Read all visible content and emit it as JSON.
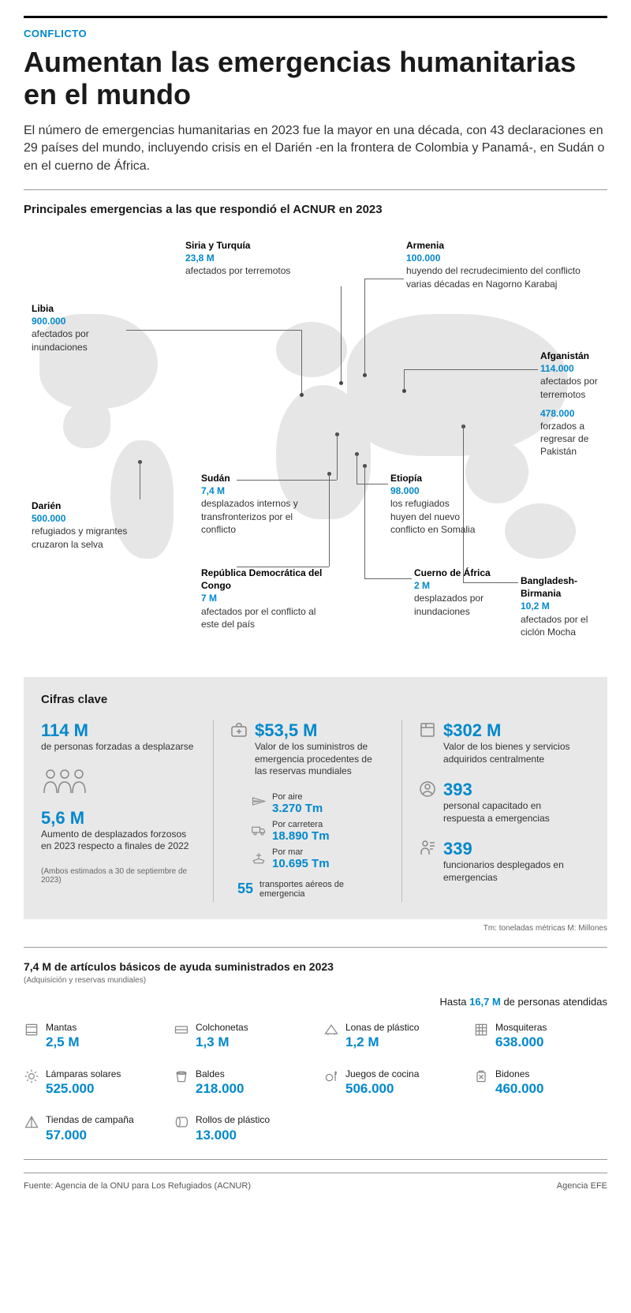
{
  "colors": {
    "accent": "#0088cc",
    "text": "#1a1a1a",
    "map": "#e6e6e6",
    "keybox_bg": "#e8e8e8",
    "rule": "#999",
    "icon": "#888888"
  },
  "kicker": "CONFLICTO",
  "headline": "Aumentan las emergencias humanitarias en el mundo",
  "dek": "El número de emergencias humanitarias en 2023 fue la mayor en una década, con 43 declaraciones en 29 países del mundo, incluyendo crisis en el Darién -en la frontera de Colombia y Panamá-, en Sudán o en el cuerno de África.",
  "map": {
    "title": "Principales emergencias a las que respondió el ACNUR en 2023",
    "points": [
      {
        "loc": "Libia",
        "val": "900.000",
        "desc": "afectados por inundaciones"
      },
      {
        "loc": "Siria y Turquía",
        "val": "23,8 M",
        "desc": "afectados por terremotos"
      },
      {
        "loc": "Armenia",
        "val": "100.000",
        "desc": "huyendo del recrudecimiento del conflicto varias décadas en Nagorno Karabaj"
      },
      {
        "loc": "Afganistán",
        "val": "114.000",
        "desc": "afectados por terremotos",
        "val2": "478.000",
        "desc2": "forzados a regresar de Pakistán"
      },
      {
        "loc": "Darién",
        "val": "500.000",
        "desc": "refugiados y migrantes cruzaron la selva"
      },
      {
        "loc": "Sudán",
        "val": "7,4 M",
        "desc": "desplazados internos y transfronterizos por el conflicto"
      },
      {
        "loc": "Etiopía",
        "val": "98.000",
        "desc": "los refugiados huyen del nuevo conflicto en Somalia"
      },
      {
        "loc": "República Democrática del Congo",
        "val": "7 M",
        "desc": "afectados por el conflicto al este del país"
      },
      {
        "loc": "Cuerno de África",
        "val": "2 M",
        "desc": "desplazados por inundaciones"
      },
      {
        "loc": "Bangladesh-Birmania",
        "val": "10,2 M",
        "desc": "afectados por el ciclón Mocha"
      }
    ]
  },
  "keybox": {
    "title": "Cifras clave",
    "col1": {
      "s1_val": "114 M",
      "s1_lbl": "de personas forzadas a desplazarse",
      "s2_val": "5,6 M",
      "s2_lbl": "Aumento de desplazados forzosos en 2023 respecto a finales de 2022",
      "note": "(Ambos estimados a 30 de septiembre de 2023)"
    },
    "col2": {
      "s1_val": "$53,5 M",
      "s1_lbl": "Valor de los suministros de emergencia procedentes de las reservas mundiales",
      "air_lbl": "Por aire",
      "air_val": "3.270 Tm",
      "road_lbl": "Por carretera",
      "road_val": "18.890 Tm",
      "sea_lbl": "Por mar",
      "sea_val": "10.695 Tm",
      "flights_val": "55",
      "flights_lbl": "transportes aéreos de emergencia"
    },
    "col3": {
      "s1_val": "$302 M",
      "s1_lbl": "Valor de los bienes y servicios adquiridos centralmente",
      "s2_val": "393",
      "s2_lbl": "personal capacitado en respuesta a emergencias",
      "s3_val": "339",
      "s3_lbl": "funcionarios desplegados en emergencias"
    },
    "legend": "Tm: toneladas métricas        M: Millones"
  },
  "aid": {
    "title": "7,4 M de artículos básicos de ayuda suministrados en 2023",
    "sub": "(Adquisición y reservas mundiales)",
    "hasta_pre": "Hasta ",
    "hasta_val": "16,7 M",
    "hasta_post": " de personas atendidas",
    "items": [
      {
        "name": "Mantas",
        "val": "2,5 M",
        "icon": "blanket"
      },
      {
        "name": "Colchonetas",
        "val": "1,3 M",
        "icon": "mat"
      },
      {
        "name": "Lonas de plástico",
        "val": "1,2 M",
        "icon": "tarp"
      },
      {
        "name": "Mosquiteras",
        "val": "638.000",
        "icon": "net"
      },
      {
        "name": "Lámparas solares",
        "val": "525.000",
        "icon": "lamp"
      },
      {
        "name": "Baldes",
        "val": "218.000",
        "icon": "bucket"
      },
      {
        "name": "Juegos de cocina",
        "val": "506.000",
        "icon": "cook"
      },
      {
        "name": "Bidones",
        "val": "460.000",
        "icon": "jerry"
      },
      {
        "name": "Tiendas de campaña",
        "val": "57.000",
        "icon": "tent"
      },
      {
        "name": "Rollos de plástico",
        "val": "13.000",
        "icon": "roll"
      }
    ]
  },
  "footer": {
    "source": "Fuente: Agencia de la ONU para Los Refugiados (ACNUR)",
    "agency": "Agencia EFE"
  }
}
